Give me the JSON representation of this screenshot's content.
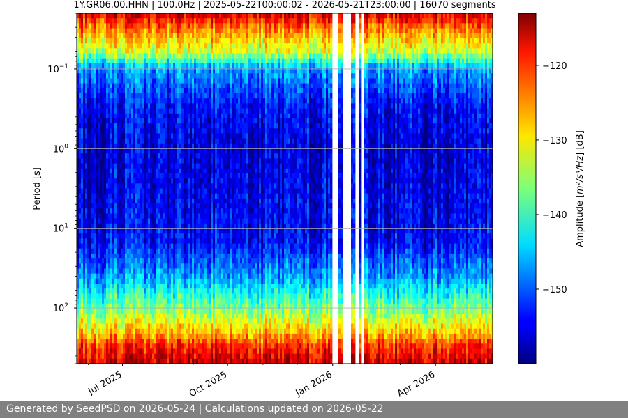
{
  "chart_data": {
    "type": "heatmap",
    "title": "1Y.GR06.00.HHN | 100.0Hz | 2025-05-22T00:00:02 - 2026-05-21T23:00:00 | 16070 segments",
    "xlabel": "",
    "ylabel": "Period [s]",
    "x_range": [
      "2025-05-22",
      "2026-05-21"
    ],
    "x_ticks": [
      {
        "date": "2025-07-01",
        "label": "Jul 2025"
      },
      {
        "date": "2025-10-01",
        "label": "Oct 2025"
      },
      {
        "date": "2026-01-01",
        "label": "Jan 2026"
      },
      {
        "date": "2026-04-01",
        "label": "Apr 2026"
      }
    ],
    "y_scale": "log",
    "y_inverted": true,
    "y_range": [
      0.02,
      500
    ],
    "y_ticks": [
      {
        "value": 0.1,
        "base": "10",
        "exp": "−1"
      },
      {
        "value": 1,
        "base": "10",
        "exp": "0"
      },
      {
        "value": 10,
        "base": "10",
        "exp": "1"
      },
      {
        "value": 100,
        "base": "10",
        "exp": "2"
      }
    ],
    "grid": true,
    "data_gaps": [
      [
        "2026-01-01",
        "2026-01-05"
      ],
      [
        "2026-01-09",
        "2026-01-17"
      ],
      [
        "2026-01-20",
        "2026-01-24"
      ],
      [
        "2026-01-25",
        "2026-01-27"
      ]
    ],
    "colorbar": {
      "label_prefix": "Amplitude [",
      "label_math": "m²/s⁴/Hz",
      "label_suffix": "] [dB]",
      "range": [
        -160,
        -113
      ],
      "ticks": [
        "−120",
        "−130",
        "−140",
        "−150"
      ],
      "tick_values": [
        -120,
        -130,
        -140,
        -150
      ],
      "colormap": "jet"
    },
    "amplitude_profile": [
      {
        "period": 0.02,
        "db": -117
      },
      {
        "period": 0.03,
        "db": -124
      },
      {
        "period": 0.06,
        "db": -133
      },
      {
        "period": 0.1,
        "db": -147
      },
      {
        "period": 0.3,
        "db": -154
      },
      {
        "period": 1,
        "db": -156
      },
      {
        "period": 5,
        "db": -155
      },
      {
        "period": 15,
        "db": -154
      },
      {
        "period": 40,
        "db": -147
      },
      {
        "period": 100,
        "db": -137
      },
      {
        "period": 200,
        "db": -128
      },
      {
        "period": 300,
        "db": -121
      },
      {
        "period": 500,
        "db": -116
      }
    ]
  },
  "footer": {
    "text": "Generated by SeedPSD on 2026-05-24 | Calculations updated on 2026-05-22"
  }
}
